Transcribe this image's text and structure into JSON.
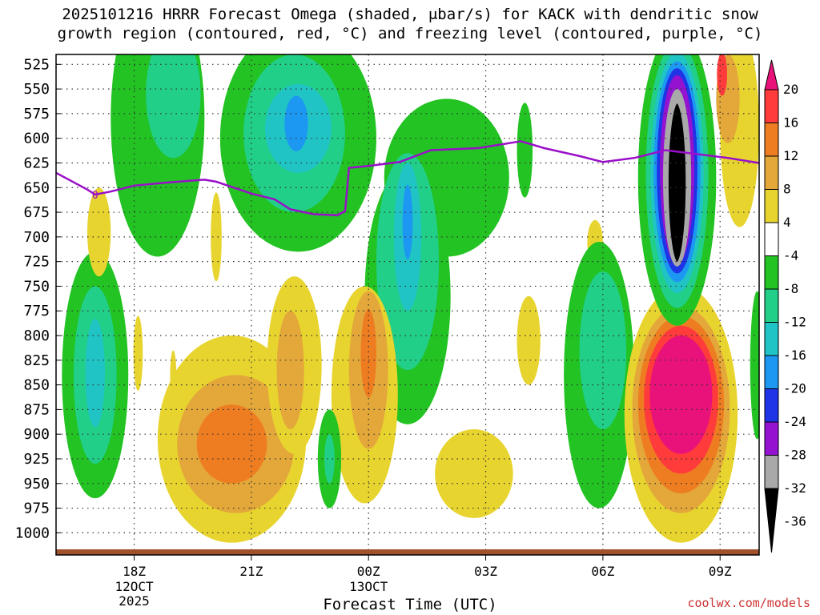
{
  "chart_data": {
    "type": "heatmap",
    "title": "2025101216 HRRR Forecast Omega (shaded, μbar/s) for KACK with dendritic snow\ngrowth region (contoured, red, °C) and freezing level (contoured, purple, °C)",
    "xlabel": "Forecast Time (UTC)",
    "ylabel": "",
    "y_ticks": [
      525,
      550,
      575,
      600,
      625,
      650,
      675,
      700,
      725,
      750,
      775,
      800,
      825,
      850,
      875,
      900,
      925,
      950,
      975,
      1000
    ],
    "x_ticks": [
      {
        "hour": 18,
        "label": "18Z",
        "sub": "12OCT",
        "sub2": "2025"
      },
      {
        "hour": 21,
        "label": "21Z",
        "sub": "",
        "sub2": ""
      },
      {
        "hour": 24,
        "label": "00Z",
        "sub": "13OCT",
        "sub2": ""
      },
      {
        "hour": 27,
        "label": "03Z",
        "sub": "",
        "sub2": ""
      },
      {
        "hour": 30,
        "label": "06Z",
        "sub": "",
        "sub2": ""
      },
      {
        "hour": 33,
        "label": "09Z",
        "sub": "",
        "sub2": ""
      }
    ],
    "x_range_hours": [
      16,
      34
    ],
    "y_range_hPa": [
      515,
      1020
    ],
    "colorbar": {
      "labels": [
        "20",
        "16",
        "12",
        "8",
        "4",
        "-4",
        "-8",
        "-12",
        "-16",
        "-20",
        "-24",
        "-28",
        "-32",
        "-36"
      ],
      "colors": [
        "#e8127a",
        "#ff3b3b",
        "#ee7d22",
        "#e3a73a",
        "#e8d42f",
        "#ffffff",
        "#22c322",
        "#21cf89",
        "#20c4c4",
        "#1c97f2",
        "#1e34e6",
        "#9313d1",
        "#a9a9a9",
        "#000000"
      ]
    },
    "freezing_level": {
      "color": "#9a0fc9",
      "label": "0",
      "points": [
        [
          16.0,
          635
        ],
        [
          16.8,
          652
        ],
        [
          17.0,
          657
        ],
        [
          17.4,
          654
        ],
        [
          18.0,
          648
        ],
        [
          18.8,
          645
        ],
        [
          19.8,
          642
        ],
        [
          20.1,
          644
        ],
        [
          21.0,
          656
        ],
        [
          21.6,
          662
        ],
        [
          22.0,
          672
        ],
        [
          22.6,
          677
        ],
        [
          23.2,
          678
        ],
        [
          23.4,
          674
        ],
        [
          23.5,
          630
        ],
        [
          24.0,
          628
        ],
        [
          24.8,
          624
        ],
        [
          25.6,
          612
        ],
        [
          26.8,
          610
        ],
        [
          27.9,
          603
        ],
        [
          28.5,
          610
        ],
        [
          29.4,
          618
        ],
        [
          30.0,
          624
        ],
        [
          30.8,
          620
        ],
        [
          31.6,
          612
        ],
        [
          32.4,
          616
        ],
        [
          33.2,
          620
        ],
        [
          34.0,
          625
        ]
      ]
    },
    "omega_regions": [
      {
        "level": -8,
        "hour": 17.0,
        "p": 840,
        "dh": 0.85,
        "dp": 125
      },
      {
        "level": -12,
        "hour": 17.0,
        "p": 840,
        "dh": 0.55,
        "dp": 90
      },
      {
        "level": -16,
        "hour": 17.0,
        "p": 838,
        "dh": 0.25,
        "dp": 55
      },
      {
        "level": 4,
        "hour": 17.1,
        "p": 695,
        "dh": 0.3,
        "dp": 45
      },
      {
        "level": -8,
        "hour": 18.6,
        "p": 580,
        "dh": 1.2,
        "dp": 140
      },
      {
        "level": -12,
        "hour": 19.0,
        "p": 555,
        "dh": 0.7,
        "dp": 65
      },
      {
        "level": 4,
        "hour": 18.1,
        "p": 818,
        "dh": 0.12,
        "dp": 38
      },
      {
        "level": 4,
        "hour": 19.0,
        "p": 840,
        "dh": 0.08,
        "dp": 25
      },
      {
        "level": 4,
        "hour": 20.1,
        "p": 700,
        "dh": 0.14,
        "dp": 45
      },
      {
        "level": -8,
        "hour": 22.2,
        "p": 600,
        "dh": 2.0,
        "dp": 115
      },
      {
        "level": -12,
        "hour": 22.1,
        "p": 595,
        "dh": 1.3,
        "dp": 80
      },
      {
        "level": -16,
        "hour": 22.2,
        "p": 590,
        "dh": 0.85,
        "dp": 45
      },
      {
        "level": -20,
        "hour": 22.15,
        "p": 585,
        "dh": 0.3,
        "dp": 28
      },
      {
        "level": -8,
        "hour": 26.0,
        "p": 640,
        "dh": 1.6,
        "dp": 80
      },
      {
        "level": -8,
        "hour": 25.0,
        "p": 760,
        "dh": 1.1,
        "dp": 130
      },
      {
        "level": -12,
        "hour": 25.0,
        "p": 725,
        "dh": 0.8,
        "dp": 110
      },
      {
        "level": -16,
        "hour": 25.0,
        "p": 700,
        "dh": 0.35,
        "dp": 75
      },
      {
        "level": -20,
        "hour": 25.0,
        "p": 685,
        "dh": 0.13,
        "dp": 38
      },
      {
        "level": -8,
        "hour": 28.0,
        "p": 612,
        "dh": 0.2,
        "dp": 48
      },
      {
        "level": 4,
        "hour": 20.5,
        "p": 905,
        "dh": 1.9,
        "dp": 105
      },
      {
        "level": 8,
        "hour": 20.6,
        "p": 910,
        "dh": 1.5,
        "dp": 70
      },
      {
        "level": 12,
        "hour": 20.5,
        "p": 910,
        "dh": 0.9,
        "dp": 40
      },
      {
        "level": 4,
        "hour": 22.1,
        "p": 830,
        "dh": 0.7,
        "dp": 90
      },
      {
        "level": 8,
        "hour": 22.0,
        "p": 835,
        "dh": 0.35,
        "dp": 60
      },
      {
        "level": 4,
        "hour": 23.9,
        "p": 860,
        "dh": 0.85,
        "dp": 110
      },
      {
        "level": 8,
        "hour": 24.0,
        "p": 835,
        "dh": 0.5,
        "dp": 80
      },
      {
        "level": 12,
        "hour": 24.0,
        "p": 818,
        "dh": 0.2,
        "dp": 45
      },
      {
        "level": -8,
        "hour": 23.0,
        "p": 925,
        "dh": 0.3,
        "dp": 50
      },
      {
        "level": -12,
        "hour": 23.0,
        "p": 925,
        "dh": 0.13,
        "dp": 25
      },
      {
        "level": 4,
        "hour": 26.7,
        "p": 940,
        "dh": 1.0,
        "dp": 45
      },
      {
        "level": 4,
        "hour": 28.1,
        "p": 805,
        "dh": 0.3,
        "dp": 45
      },
      {
        "level": 4,
        "hour": 29.8,
        "p": 705,
        "dh": 0.2,
        "dp": 22
      },
      {
        "level": -8,
        "hour": 29.9,
        "p": 840,
        "dh": 0.9,
        "dp": 135
      },
      {
        "level": -12,
        "hour": 30.0,
        "p": 815,
        "dh": 0.6,
        "dp": 80
      },
      {
        "level": 4,
        "hour": 32.0,
        "p": 880,
        "dh": 1.45,
        "dp": 130
      },
      {
        "level": 8,
        "hour": 32.0,
        "p": 875,
        "dh": 1.25,
        "dp": 105
      },
      {
        "level": 12,
        "hour": 32.0,
        "p": 870,
        "dh": 1.1,
        "dp": 90
      },
      {
        "level": 16,
        "hour": 32.0,
        "p": 865,
        "dh": 0.95,
        "dp": 75
      },
      {
        "level": 20,
        "hour": 32.0,
        "p": 860,
        "dh": 0.8,
        "dp": 60
      },
      {
        "level": -8,
        "hour": 31.9,
        "p": 640,
        "dh": 1.0,
        "dp": 150
      },
      {
        "level": -12,
        "hour": 31.9,
        "p": 637,
        "dh": 0.8,
        "dp": 135
      },
      {
        "level": -16,
        "hour": 31.9,
        "p": 635,
        "dh": 0.68,
        "dp": 122
      },
      {
        "level": -20,
        "hour": 31.9,
        "p": 634,
        "dh": 0.6,
        "dp": 112
      },
      {
        "level": -24,
        "hour": 31.9,
        "p": 633,
        "dh": 0.52,
        "dp": 104
      },
      {
        "level": -28,
        "hour": 31.9,
        "p": 632,
        "dh": 0.44,
        "dp": 96
      },
      {
        "level": -32,
        "hour": 31.9,
        "p": 640,
        "dh": 0.36,
        "dp": 90
      },
      {
        "level": -36,
        "hour": 31.9,
        "p": 645,
        "dh": 0.26,
        "dp": 82
      },
      {
        "level": 4,
        "hour": 33.5,
        "p": 590,
        "dh": 0.5,
        "dp": 100
      },
      {
        "level": 8,
        "hour": 33.2,
        "p": 560,
        "dh": 0.3,
        "dp": 45
      },
      {
        "level": 16,
        "hour": 33.05,
        "p": 535,
        "dh": 0.13,
        "dp": 22
      },
      {
        "level": -8,
        "hour": 33.95,
        "p": 830,
        "dh": 0.18,
        "dp": 75
      }
    ]
  },
  "credit": "coolwx.com/models"
}
